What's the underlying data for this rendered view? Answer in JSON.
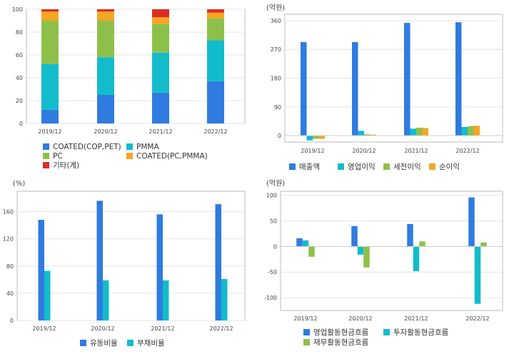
{
  "colors": {
    "blue": "#2f7be0",
    "cyan": "#12bccb",
    "green": "#8dc04a",
    "orange": "#f5a623",
    "red": "#dd2d22",
    "grid": "#e4e4e4",
    "frame": "#bbbbbb"
  },
  "chart_data": [
    {
      "type": "bar",
      "stacked": true,
      "unit_label": "",
      "categories": [
        "2019/12",
        "2020/12",
        "2021/12",
        "2022/12"
      ],
      "ylim": [
        0,
        100
      ],
      "yticks": [
        0,
        20,
        40,
        60,
        80,
        100
      ],
      "series": [
        {
          "name": "COATED(COP,PET)",
          "color": "#2f7be0",
          "values": [
            12,
            25,
            27,
            37
          ]
        },
        {
          "name": "PMMA",
          "color": "#12bccb",
          "values": [
            40,
            33,
            35,
            36
          ]
        },
        {
          "name": "PC",
          "color": "#8dc04a",
          "values": [
            38,
            32,
            25,
            19
          ]
        },
        {
          "name": "COATED(PC,PMMA)",
          "color": "#f5a623",
          "values": [
            8,
            8,
            6,
            5
          ]
        },
        {
          "name": "기타(계)",
          "color": "#dd2d22",
          "values": [
            2,
            2,
            7,
            3
          ]
        }
      ]
    },
    {
      "type": "bar",
      "unit_label": "(억원)",
      "categories": [
        "2019/12",
        "2020/12",
        "2021/12",
        "2022/12"
      ],
      "ylim": [
        -20,
        380
      ],
      "yticks": [
        0,
        90,
        180,
        270,
        360
      ],
      "series": [
        {
          "name": "매출액",
          "color": "#2f7be0",
          "values": [
            293,
            293,
            353,
            355
          ]
        },
        {
          "name": "영업이익",
          "color": "#12bccb",
          "values": [
            -15,
            15,
            22,
            27
          ]
        },
        {
          "name": "세전이익",
          "color": "#8dc04a",
          "values": [
            -10,
            4,
            25,
            30
          ]
        },
        {
          "name": "순이익",
          "color": "#f5a623",
          "values": [
            -10,
            3,
            24,
            31
          ]
        }
      ]
    },
    {
      "type": "bar",
      "unit_label": "(%)",
      "categories": [
        "2019/12",
        "2020/12",
        "2021/12",
        "2022/12"
      ],
      "ylim": [
        0,
        190
      ],
      "yticks": [
        0,
        40,
        80,
        120,
        160
      ],
      "series": [
        {
          "name": "유동비율",
          "color": "#2f7be0",
          "values": [
            148,
            176,
            156,
            171
          ]
        },
        {
          "name": "부채비율",
          "color": "#12bccb",
          "values": [
            73,
            59,
            59,
            61
          ]
        }
      ]
    },
    {
      "type": "bar",
      "unit_label": "(억원)",
      "categories": [
        "2019/12",
        "2020/12",
        "2021/12",
        "2022/12"
      ],
      "ylim": [
        -125,
        108
      ],
      "yticks": [
        -100,
        -50,
        0,
        50,
        100
      ],
      "series": [
        {
          "name": "영업활동현금흐름",
          "color": "#2f7be0",
          "values": [
            16,
            40,
            44,
            96
          ]
        },
        {
          "name": "투자활동현금흐름",
          "color": "#12bccb",
          "values": [
            12,
            -16,
            -48,
            -112
          ]
        },
        {
          "name": "재무활동현금흐름",
          "color": "#8dc04a",
          "values": [
            -20,
            -41,
            10,
            8
          ]
        }
      ]
    }
  ]
}
